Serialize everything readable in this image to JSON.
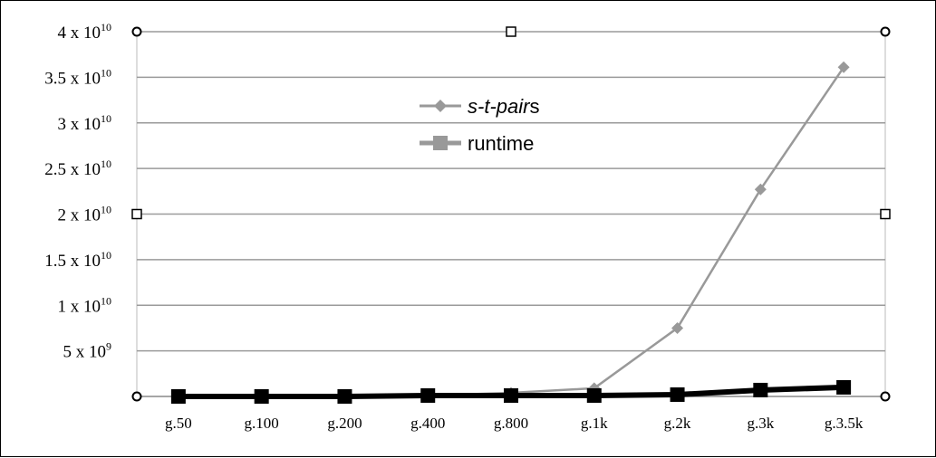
{
  "chart_data": {
    "type": "line",
    "categories": [
      "g.50",
      "g.100",
      "g.200",
      "g.400",
      "g.800",
      "g.1k",
      "g.2k",
      "g.3k",
      "g.3.5k"
    ],
    "ylim": [
      0,
      40000000000
    ],
    "y_ticks": [
      {
        "value": 40000000000,
        "base": "4 x 10",
        "exp": "10"
      },
      {
        "value": 35000000000,
        "base": "3.5 x 10",
        "exp": "10"
      },
      {
        "value": 30000000000,
        "base": "3 x 10",
        "exp": "10"
      },
      {
        "value": 25000000000,
        "base": "2.5 x 10",
        "exp": "10"
      },
      {
        "value": 20000000000,
        "base": "2 x 10",
        "exp": "10"
      },
      {
        "value": 15000000000,
        "base": "1.5 x 10",
        "exp": "10"
      },
      {
        "value": 10000000000,
        "base": "1 x 10",
        "exp": "10"
      },
      {
        "value": 5000000000,
        "base": "5 x 10",
        "exp": "9"
      }
    ],
    "grid": true,
    "legend_position": "top-center",
    "series": [
      {
        "name_parts": [
          "s-t-pair",
          "s"
        ],
        "color": "#999999",
        "marker": "diamond",
        "values": [
          0,
          0,
          0,
          100000000,
          400000000,
          900000000,
          7500000000,
          22700000000,
          36100000000
        ]
      },
      {
        "name_parts": [
          "runtime"
        ],
        "color": "#000000",
        "marker": "square",
        "values": [
          0,
          0,
          0,
          100000000,
          100000000,
          100000000,
          200000000,
          700000000,
          1000000000
        ]
      }
    ]
  }
}
